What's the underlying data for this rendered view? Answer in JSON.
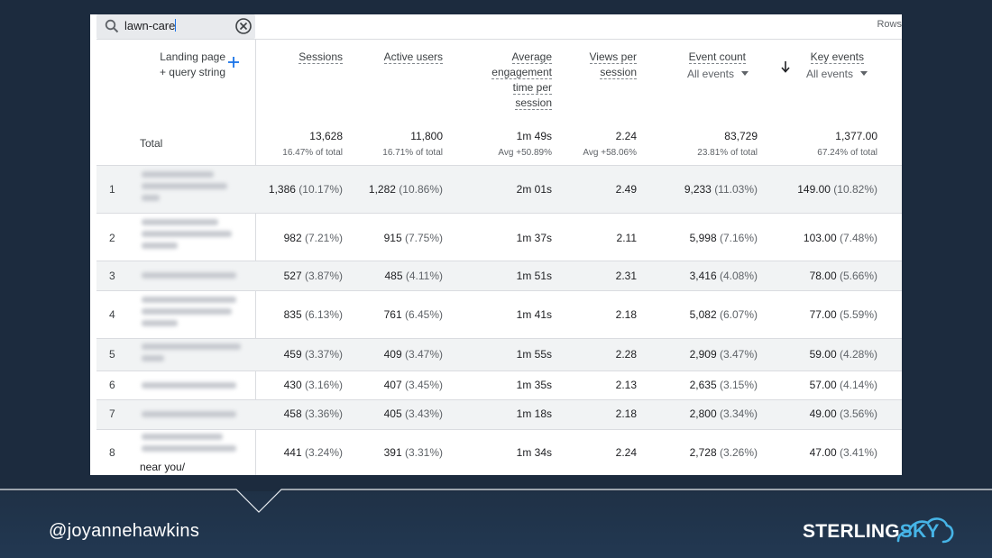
{
  "search": {
    "value": "lawn-care"
  },
  "rows_label": "Rows",
  "dimension_header": {
    "line1": "Landing page",
    "line2": "+ query string"
  },
  "columns": [
    {
      "key": "sessions",
      "label_lines": [
        "Sessions"
      ]
    },
    {
      "key": "active_users",
      "label_lines": [
        "Active users"
      ]
    },
    {
      "key": "avg_engagement",
      "label_lines": [
        "Average",
        "engagement",
        "time per",
        "session"
      ]
    },
    {
      "key": "views",
      "label_lines": [
        "Views per",
        "session"
      ]
    },
    {
      "key": "event_count",
      "label_lines": [
        "Event count"
      ],
      "selector": "All events"
    },
    {
      "key": "key_events",
      "label_lines": [
        "Key events"
      ],
      "selector": "All events",
      "sorted": "descending"
    }
  ],
  "totals": {
    "label": "Total",
    "values": [
      "13,628",
      "11,800",
      "1m 49s",
      "2.24",
      "83,729",
      "1,377.00"
    ],
    "subs": [
      "16.47% of total",
      "16.71% of total",
      "Avg +50.89%",
      "Avg +58.06%",
      "23.81% of total",
      "67.24% of total"
    ]
  },
  "rows": [
    {
      "n": "1",
      "sessions": "1,386",
      "sessions_pct": "(10.17%)",
      "users": "1,282",
      "users_pct": "(10.86%)",
      "eng": "2m 01s",
      "views": "2.49",
      "events": "9,233",
      "events_pct": "(11.03%)",
      "key": "149.00",
      "key_pct": "(10.82%)"
    },
    {
      "n": "2",
      "sessions": "982",
      "sessions_pct": "(7.21%)",
      "users": "915",
      "users_pct": "(7.75%)",
      "eng": "1m 37s",
      "views": "2.11",
      "events": "5,998",
      "events_pct": "(7.16%)",
      "key": "103.00",
      "key_pct": "(7.48%)"
    },
    {
      "n": "3",
      "sessions": "527",
      "sessions_pct": "(3.87%)",
      "users": "485",
      "users_pct": "(4.11%)",
      "eng": "1m 51s",
      "views": "2.31",
      "events": "3,416",
      "events_pct": "(4.08%)",
      "key": "78.00",
      "key_pct": "(5.66%)"
    },
    {
      "n": "4",
      "sessions": "835",
      "sessions_pct": "(6.13%)",
      "users": "761",
      "users_pct": "(6.45%)",
      "eng": "1m 41s",
      "views": "2.18",
      "events": "5,082",
      "events_pct": "(6.07%)",
      "key": "77.00",
      "key_pct": "(5.59%)"
    },
    {
      "n": "5",
      "sessions": "459",
      "sessions_pct": "(3.37%)",
      "users": "409",
      "users_pct": "(3.47%)",
      "eng": "1m 55s",
      "views": "2.28",
      "events": "2,909",
      "events_pct": "(3.47%)",
      "key": "59.00",
      "key_pct": "(4.28%)"
    },
    {
      "n": "6",
      "sessions": "430",
      "sessions_pct": "(3.16%)",
      "users": "407",
      "users_pct": "(3.45%)",
      "eng": "1m 35s",
      "views": "2.13",
      "events": "2,635",
      "events_pct": "(3.15%)",
      "key": "57.00",
      "key_pct": "(4.14%)"
    },
    {
      "n": "7",
      "sessions": "458",
      "sessions_pct": "(3.36%)",
      "users": "405",
      "users_pct": "(3.43%)",
      "eng": "1m 18s",
      "views": "2.18",
      "events": "2,800",
      "events_pct": "(3.34%)",
      "key": "49.00",
      "key_pct": "(3.56%)"
    },
    {
      "n": "8",
      "sessions": "441",
      "sessions_pct": "(3.24%)",
      "users": "391",
      "users_pct": "(3.31%)",
      "eng": "1m 34s",
      "views": "2.24",
      "events": "2,728",
      "events_pct": "(3.26%)",
      "key": "47.00",
      "key_pct": "(3.41%)"
    }
  ],
  "truncated_text": "near you/",
  "footer": {
    "handle": "@joyannehawkins",
    "brand_part1": "STERLING",
    "brand_part2": "SKY"
  },
  "colors": {
    "slide_bg": "#1c2b3e",
    "brand_accent": "#46b4e6",
    "link_blue": "#1a73e8",
    "row_shade": "#f1f3f4"
  },
  "icons": [
    "search-icon",
    "clear-icon",
    "plus-icon",
    "sort-arrow-icon",
    "dropdown-caret-icon",
    "cloud-logo-icon"
  ]
}
